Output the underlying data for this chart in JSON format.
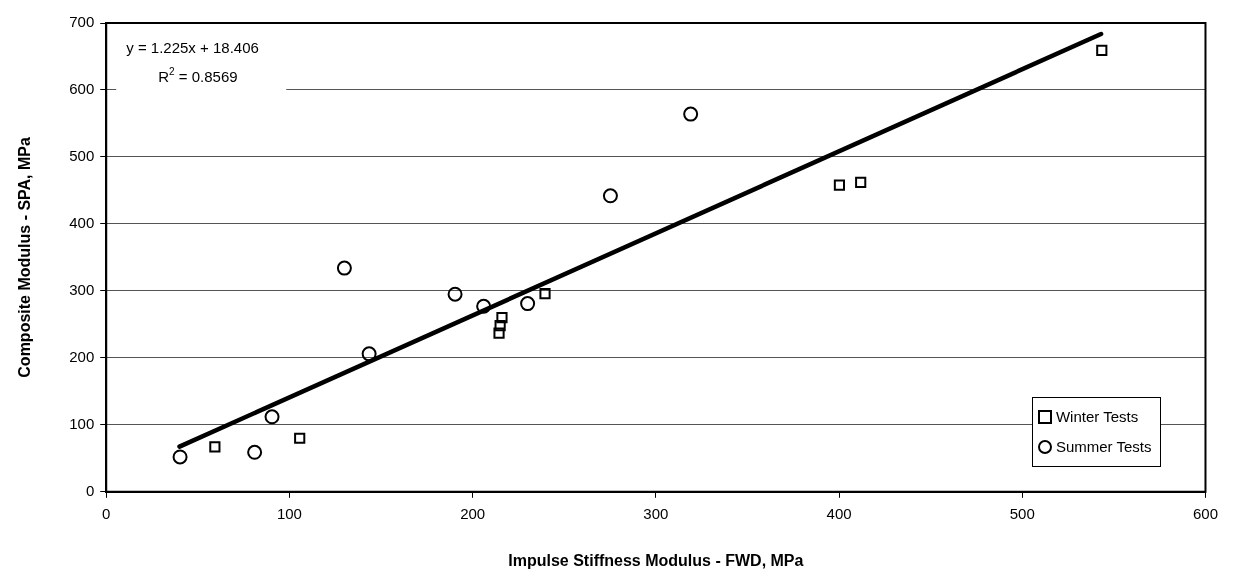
{
  "chart_data": {
    "type": "scatter",
    "xlabel": "Impulse Stiffness Modulus - FWD, MPa",
    "ylabel": "Composite Modulus - SPA, MPa",
    "xlim": [
      0,
      600
    ],
    "xticks": [
      0,
      100,
      200,
      300,
      400,
      500,
      600
    ],
    "ylim": [
      0,
      700
    ],
    "yticks": [
      0,
      100,
      200,
      300,
      400,
      500,
      600,
      700
    ],
    "grid": "y",
    "legend": "bottom right",
    "annotations": [
      "y = 1.225x + 18.406",
      "R$^{2}$ = 0.8569"
    ],
    "series": [
      {
        "name": "Winter Tests",
        "color": "#000000",
        "marker": "square",
        "x": [
          59.3,
          105.6,
          214.4,
          215,
          216,
          239.5,
          400.2,
          411.8,
          543.4
        ],
        "values": [
          67,
          80,
          237,
          248,
          260,
          296,
          458,
          462,
          659
        ]
      },
      {
        "name": "Summer Tests",
        "color": "#000000",
        "marker": "circle",
        "x": [
          40.3,
          81,
          90.5,
          130,
          143.5,
          190.4,
          206,
          230,
          275.2,
          319
        ],
        "values": [
          52,
          59,
          112,
          334,
          206,
          295,
          277,
          281,
          442,
          564
        ]
      },
      {
        "type": "line",
        "color": "#000000",
        "marker": "none",
        "line_style": "solid",
        "x": [
          40,
          543
        ],
        "values": [
          67.4,
          683.6
        ]
      }
    ]
  }
}
